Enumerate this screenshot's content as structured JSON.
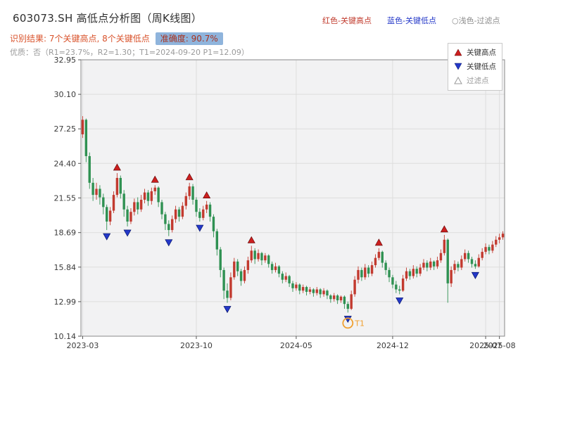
{
  "header": {
    "title": "603073.SH 高低点分析图（周K线图）",
    "legend_top": {
      "high_label": "红色-关键高点",
      "low_label": "蓝色-关键低点",
      "filter_label": "○浅色-过滤点"
    },
    "result_line": "识别结果: 7个关键高点, 8个关键低点",
    "accuracy_badge": "准确度: 90.7%",
    "quality_line": "优质：否（R1=23.7%，R2=1.30；T1=2024-09-20 P1=12.09）"
  },
  "legend_box": {
    "items": [
      {
        "label": "关键高点",
        "marker": "up-red-triangle"
      },
      {
        "label": "关键低点",
        "marker": "down-blue-triangle"
      },
      {
        "label": "过滤点",
        "marker": "up-outline-triangle"
      }
    ]
  },
  "colors": {
    "up_candle": "#c23a2f",
    "down_candle": "#2f9152",
    "key_high": "#cc1f1f",
    "key_low": "#2438c8",
    "filter_accent": "#f0a030",
    "badge_bg": "#8fb4dc",
    "plot_bg": "#f2f2f3",
    "grid": "#dddddd"
  },
  "chart_data": {
    "type": "candlestick",
    "title": "603073.SH 高低点分析图（周K线图）",
    "xlabel": "",
    "ylabel": "",
    "grid": true,
    "legend_position": "upper right",
    "ylim": [
      10.14,
      32.95
    ],
    "yticks": [
      32.95,
      30.1,
      27.25,
      24.4,
      21.55,
      18.69,
      15.84,
      12.99,
      10.14
    ],
    "xticks": [
      {
        "label": "2023-03",
        "week": 0
      },
      {
        "label": "2023-10",
        "week": 33
      },
      {
        "label": "2024-05",
        "week": 62
      },
      {
        "label": "2024-12",
        "week": 90
      },
      {
        "label": "2025-07",
        "week": 117
      },
      {
        "label": "2025-08",
        "week": 121
      }
    ],
    "candles_format": [
      "open",
      "close",
      "low",
      "high"
    ],
    "candles": [
      [
        26.8,
        28.0,
        26.5,
        28.3
      ],
      [
        28.0,
        25.0,
        24.5,
        28.1
      ],
      [
        25.0,
        22.8,
        22.3,
        25.3
      ],
      [
        22.8,
        21.8,
        21.3,
        23.2
      ],
      [
        21.8,
        22.3,
        21.4,
        22.8
      ],
      [
        22.3,
        21.6,
        21.0,
        22.6
      ],
      [
        21.6,
        20.8,
        20.2,
        21.9
      ],
      [
        20.8,
        19.6,
        18.9,
        21.0
      ],
      [
        19.6,
        20.5,
        19.3,
        20.8
      ],
      [
        20.5,
        21.8,
        20.3,
        22.1
      ],
      [
        21.8,
        23.2,
        21.6,
        23.6
      ],
      [
        23.2,
        21.9,
        21.5,
        23.4
      ],
      [
        21.9,
        20.6,
        20.0,
        22.2
      ],
      [
        20.6,
        19.6,
        19.2,
        20.9
      ],
      [
        19.6,
        20.4,
        19.4,
        20.7
      ],
      [
        20.4,
        21.2,
        20.1,
        21.5
      ],
      [
        21.2,
        20.6,
        20.2,
        21.6
      ],
      [
        20.6,
        21.4,
        20.4,
        21.8
      ],
      [
        21.4,
        22.0,
        21.1,
        22.3
      ],
      [
        22.0,
        21.3,
        20.9,
        22.2
      ],
      [
        21.3,
        22.1,
        21.0,
        22.4
      ],
      [
        22.1,
        22.4,
        21.8,
        22.6
      ],
      [
        22.4,
        21.2,
        20.8,
        22.5
      ],
      [
        21.2,
        20.2,
        19.8,
        21.4
      ],
      [
        20.2,
        19.4,
        18.9,
        20.4
      ],
      [
        19.4,
        18.9,
        18.4,
        19.7
      ],
      [
        18.9,
        19.8,
        18.7,
        20.1
      ],
      [
        19.8,
        20.6,
        19.5,
        20.9
      ],
      [
        20.6,
        20.0,
        19.6,
        20.8
      ],
      [
        20.0,
        20.9,
        19.8,
        21.2
      ],
      [
        20.9,
        21.7,
        20.6,
        22.0
      ],
      [
        21.7,
        22.5,
        21.4,
        22.8
      ],
      [
        22.5,
        21.4,
        21.0,
        22.7
      ],
      [
        21.4,
        20.4,
        20.0,
        21.6
      ],
      [
        20.4,
        19.9,
        19.6,
        20.7
      ],
      [
        19.9,
        20.6,
        19.7,
        20.9
      ],
      [
        20.6,
        21.0,
        20.3,
        21.3
      ],
      [
        21.0,
        20.0,
        19.6,
        21.2
      ],
      [
        20.0,
        18.8,
        18.3,
        20.2
      ],
      [
        18.8,
        17.3,
        16.8,
        19.0
      ],
      [
        17.3,
        15.6,
        15.0,
        17.5
      ],
      [
        15.6,
        13.9,
        13.2,
        15.8
      ],
      [
        13.9,
        13.3,
        12.9,
        14.5
      ],
      [
        13.3,
        15.0,
        13.1,
        15.4
      ],
      [
        15.0,
        16.3,
        14.8,
        16.6
      ],
      [
        16.3,
        15.5,
        15.1,
        16.5
      ],
      [
        15.5,
        14.7,
        14.3,
        15.7
      ],
      [
        14.7,
        15.6,
        14.5,
        15.9
      ],
      [
        15.6,
        16.4,
        15.3,
        16.7
      ],
      [
        16.4,
        17.2,
        16.2,
        17.6
      ],
      [
        17.2,
        16.5,
        16.1,
        17.4
      ],
      [
        16.5,
        17.0,
        16.3,
        17.3
      ],
      [
        17.0,
        16.4,
        16.0,
        17.1
      ],
      [
        16.4,
        16.8,
        16.2,
        17.0
      ],
      [
        16.8,
        16.1,
        15.8,
        16.9
      ],
      [
        16.1,
        15.6,
        15.3,
        16.3
      ],
      [
        15.6,
        15.9,
        15.4,
        16.2
      ],
      [
        15.9,
        15.3,
        15.0,
        16.0
      ],
      [
        15.3,
        14.8,
        14.5,
        15.5
      ],
      [
        14.8,
        15.1,
        14.6,
        15.4
      ],
      [
        15.1,
        14.5,
        14.2,
        15.2
      ],
      [
        14.5,
        14.1,
        13.8,
        14.7
      ],
      [
        14.1,
        14.4,
        13.9,
        14.6
      ],
      [
        14.4,
        13.9,
        13.6,
        14.5
      ],
      [
        13.9,
        14.2,
        13.7,
        14.4
      ],
      [
        14.2,
        13.8,
        13.5,
        14.3
      ],
      [
        13.8,
        14.0,
        13.6,
        14.2
      ],
      [
        14.0,
        13.7,
        13.4,
        14.1
      ],
      [
        13.7,
        14.0,
        13.5,
        14.2
      ],
      [
        14.0,
        13.6,
        13.3,
        14.1
      ],
      [
        13.6,
        13.9,
        13.4,
        14.1
      ],
      [
        13.9,
        13.5,
        13.2,
        14.0
      ],
      [
        13.5,
        13.2,
        12.9,
        13.6
      ],
      [
        13.2,
        13.5,
        13.0,
        13.7
      ],
      [
        13.5,
        13.1,
        12.8,
        13.6
      ],
      [
        13.1,
        13.4,
        12.9,
        13.5
      ],
      [
        13.4,
        12.8,
        12.4,
        13.5
      ],
      [
        12.8,
        12.4,
        12.09,
        13.0
      ],
      [
        12.4,
        13.6,
        12.3,
        13.9
      ],
      [
        13.6,
        14.8,
        13.4,
        15.1
      ],
      [
        14.8,
        15.6,
        14.5,
        15.9
      ],
      [
        15.6,
        15.0,
        14.7,
        15.8
      ],
      [
        15.0,
        15.8,
        14.8,
        16.1
      ],
      [
        15.8,
        15.3,
        15.0,
        16.0
      ],
      [
        15.3,
        16.0,
        15.1,
        16.3
      ],
      [
        16.0,
        16.6,
        15.8,
        16.9
      ],
      [
        16.6,
        17.1,
        16.4,
        17.4
      ],
      [
        17.1,
        16.2,
        15.8,
        17.2
      ],
      [
        16.2,
        15.6,
        15.2,
        16.4
      ],
      [
        15.6,
        15.0,
        14.6,
        15.8
      ],
      [
        15.0,
        14.4,
        14.1,
        15.2
      ],
      [
        14.4,
        14.0,
        13.7,
        14.7
      ],
      [
        14.0,
        13.9,
        13.6,
        14.3
      ],
      [
        13.9,
        14.9,
        13.8,
        15.2
      ],
      [
        14.9,
        15.5,
        14.7,
        15.8
      ],
      [
        15.5,
        15.1,
        14.8,
        15.7
      ],
      [
        15.1,
        15.7,
        14.9,
        16.0
      ],
      [
        15.7,
        15.3,
        15.0,
        15.9
      ],
      [
        15.3,
        15.8,
        15.1,
        16.1
      ],
      [
        15.8,
        16.2,
        15.6,
        16.5
      ],
      [
        16.2,
        15.8,
        15.5,
        16.4
      ],
      [
        15.8,
        16.3,
        15.6,
        16.6
      ],
      [
        16.3,
        15.9,
        15.6,
        16.4
      ],
      [
        15.9,
        16.4,
        15.7,
        16.7
      ],
      [
        16.4,
        17.0,
        16.2,
        17.3
      ],
      [
        17.0,
        18.1,
        16.8,
        18.5
      ],
      [
        18.1,
        14.5,
        12.9,
        18.2
      ],
      [
        14.5,
        15.6,
        14.2,
        15.9
      ],
      [
        15.6,
        16.1,
        15.3,
        16.4
      ],
      [
        16.1,
        15.8,
        15.5,
        16.3
      ],
      [
        15.8,
        16.5,
        15.6,
        16.8
      ],
      [
        16.5,
        17.0,
        16.3,
        17.3
      ],
      [
        17.0,
        16.5,
        16.2,
        17.2
      ],
      [
        16.5,
        16.1,
        15.8,
        16.7
      ],
      [
        16.1,
        15.9,
        15.7,
        16.4
      ],
      [
        15.9,
        16.6,
        15.8,
        16.9
      ],
      [
        16.6,
        17.1,
        16.4,
        17.4
      ],
      [
        17.1,
        17.5,
        16.9,
        17.8
      ],
      [
        17.5,
        17.2,
        16.9,
        17.7
      ],
      [
        17.2,
        17.7,
        17.0,
        18.0
      ],
      [
        17.7,
        18.1,
        17.5,
        18.4
      ],
      [
        18.1,
        18.3,
        17.8,
        18.6
      ],
      [
        18.3,
        18.6,
        18.1,
        18.8
      ]
    ],
    "key_highs": [
      10,
      21,
      31,
      36,
      49,
      86,
      105
    ],
    "key_lows": [
      7,
      13,
      25,
      34,
      42,
      77,
      92,
      114
    ],
    "filtered_point": {
      "week": 77,
      "label": "T1",
      "date": "2024-09-20",
      "price": 12.09
    }
  }
}
